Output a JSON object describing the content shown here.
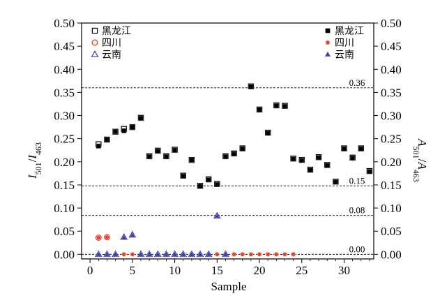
{
  "chart_data": {
    "type": "scatter",
    "title": "",
    "xlabel": "Sample",
    "ylabel_left": {
      "base": "I",
      "sub1": "501",
      "slash": "/",
      "base2": "I",
      "sub2": "463"
    },
    "ylabel_right": {
      "base": "A",
      "sub1": "501",
      "slash": "/",
      "base2": "A",
      "sub2": "463"
    },
    "xlim": [
      -1,
      33.5
    ],
    "ylim": [
      -0.01,
      0.5
    ],
    "x_ticks": [
      0,
      5,
      10,
      15,
      20,
      25,
      30
    ],
    "x_tick_labels": [
      "0",
      "5",
      "10",
      "15",
      "20",
      "25",
      "30"
    ],
    "y_ticks": [
      0.0,
      0.05,
      0.1,
      0.15,
      0.2,
      0.25,
      0.3,
      0.35,
      0.4,
      0.45,
      0.5
    ],
    "y_tick_labels": [
      "0.00",
      "0.05",
      "0.10",
      "0.15",
      "0.20",
      "0.25",
      "0.30",
      "0.35",
      "0.40",
      "0.45",
      "0.50"
    ],
    "reference_lines": [
      {
        "y": 0.36,
        "label": "0.36"
      },
      {
        "y": 0.148,
        "label": "0.15"
      },
      {
        "y": 0.084,
        "label": "0.08"
      },
      {
        "y": 0.0,
        "label": "0.00"
      }
    ],
    "legend_left": {
      "placement": "top-left",
      "entries": [
        {
          "label": "黑龙江",
          "marker": "square-open",
          "color": "#000000"
        },
        {
          "label": "四川",
          "marker": "circle-open",
          "color": "#e8402a"
        },
        {
          "label": "云南",
          "marker": "triangle-open",
          "color": "#3a3fa0"
        }
      ]
    },
    "legend_right": {
      "placement": "top-right",
      "entries": [
        {
          "label": "黑龙江",
          "marker": "square-filled",
          "color": "#000000"
        },
        {
          "label": "四川",
          "marker": "circle-filled",
          "color": "#e8402a"
        },
        {
          "label": "云南",
          "marker": "triangle-filled",
          "color": "#3a3fa0"
        }
      ]
    },
    "series": [
      {
        "name": "黑龙江",
        "axis": "left",
        "marker": "square-open",
        "color": "#000000",
        "points": [
          [
            1,
            0.238
          ],
          [
            2,
            0.248
          ],
          [
            3,
            0.265
          ],
          [
            4,
            0.271
          ],
          [
            5,
            0.275
          ],
          [
            6,
            0.295
          ],
          [
            7,
            0.212
          ],
          [
            8,
            0.224
          ],
          [
            9,
            0.212
          ],
          [
            10,
            0.226
          ],
          [
            11,
            0.17
          ],
          [
            12,
            0.204
          ],
          [
            13,
            0.148
          ],
          [
            14,
            0.162
          ],
          [
            15,
            0.152
          ],
          [
            16,
            0.212
          ],
          [
            17,
            0.218
          ],
          [
            18,
            0.229
          ],
          [
            19,
            0.363
          ],
          [
            20,
            0.313
          ],
          [
            21,
            0.263
          ],
          [
            22,
            0.322
          ],
          [
            23,
            0.321
          ],
          [
            24,
            0.207
          ],
          [
            25,
            0.204
          ],
          [
            26,
            0.183
          ],
          [
            27,
            0.21
          ],
          [
            28,
            0.193
          ],
          [
            29,
            0.157
          ],
          [
            30,
            0.229
          ],
          [
            31,
            0.209
          ],
          [
            32,
            0.229
          ],
          [
            33,
            0.18
          ]
        ]
      },
      {
        "name": "黑龙江",
        "axis": "right",
        "marker": "square-filled",
        "color": "#000000",
        "points": [
          [
            1,
            0.234
          ],
          [
            2,
            0.248
          ],
          [
            3,
            0.265
          ],
          [
            4,
            0.267
          ],
          [
            5,
            0.275
          ],
          [
            6,
            0.294
          ],
          [
            7,
            0.211
          ],
          [
            8,
            0.223
          ],
          [
            9,
            0.211
          ],
          [
            10,
            0.225
          ],
          [
            11,
            0.169
          ],
          [
            12,
            0.204
          ],
          [
            13,
            0.147
          ],
          [
            14,
            0.161
          ],
          [
            15,
            0.151
          ],
          [
            16,
            0.211
          ],
          [
            17,
            0.217
          ],
          [
            18,
            0.228
          ],
          [
            19,
            0.362
          ],
          [
            20,
            0.312
          ],
          [
            21,
            0.262
          ],
          [
            22,
            0.321
          ],
          [
            23,
            0.32
          ],
          [
            24,
            0.206
          ],
          [
            25,
            0.203
          ],
          [
            26,
            0.182
          ],
          [
            27,
            0.209
          ],
          [
            28,
            0.192
          ],
          [
            29,
            0.156
          ],
          [
            30,
            0.228
          ],
          [
            31,
            0.208
          ],
          [
            32,
            0.228
          ],
          [
            33,
            0.179
          ]
        ]
      },
      {
        "name": "四川",
        "axis": "left",
        "marker": "circle-open",
        "color": "#e8402a",
        "points": [
          [
            1,
            0.036
          ],
          [
            2,
            0.037
          ]
        ]
      },
      {
        "name": "四川",
        "axis": "right",
        "marker": "circle-filled",
        "color": "#e8402a",
        "points": [
          [
            1,
            0.036
          ],
          [
            2,
            0.037
          ],
          [
            4,
            0.0
          ],
          [
            5,
            0.0
          ],
          [
            6,
            0.0
          ],
          [
            7,
            0.0
          ],
          [
            8,
            0.0
          ],
          [
            9,
            0.0
          ],
          [
            10,
            0.0
          ],
          [
            11,
            0.0
          ],
          [
            12,
            0.0
          ],
          [
            13,
            0.0
          ],
          [
            14,
            0.0
          ],
          [
            15,
            0.0
          ],
          [
            16,
            0.0
          ],
          [
            17,
            0.0
          ],
          [
            18,
            0.0
          ],
          [
            19,
            0.0
          ],
          [
            20,
            0.0
          ],
          [
            21,
            0.0
          ],
          [
            22,
            0.0
          ],
          [
            23,
            0.0
          ],
          [
            24,
            0.0
          ]
        ]
      },
      {
        "name": "云南",
        "axis": "left",
        "marker": "triangle-open",
        "color": "#3a3fa0",
        "points": [
          [
            1,
            0.0
          ],
          [
            2,
            0.0
          ],
          [
            3,
            0.0
          ],
          [
            4,
            0.037
          ],
          [
            5,
            0.042
          ],
          [
            6,
            0.0
          ],
          [
            7,
            0.0
          ],
          [
            8,
            0.0
          ],
          [
            9,
            0.0
          ],
          [
            10,
            0.0
          ],
          [
            11,
            0.0
          ],
          [
            12,
            0.0
          ],
          [
            13,
            0.0
          ],
          [
            14,
            0.0
          ],
          [
            15,
            0.083
          ],
          [
            16,
            0.0
          ]
        ]
      },
      {
        "name": "云南",
        "axis": "right",
        "marker": "triangle-filled",
        "color": "#3a3fa0",
        "points": [
          [
            1,
            0.0
          ],
          [
            2,
            0.0
          ],
          [
            3,
            0.0
          ],
          [
            4,
            0.036
          ],
          [
            5,
            0.041
          ],
          [
            6,
            0.0
          ],
          [
            7,
            0.0
          ],
          [
            8,
            0.0
          ],
          [
            9,
            0.0
          ],
          [
            10,
            0.0
          ],
          [
            11,
            0.0
          ],
          [
            12,
            0.0
          ],
          [
            13,
            0.0
          ],
          [
            14,
            0.0
          ],
          [
            15,
            0.082
          ],
          [
            16,
            0.0
          ]
        ]
      }
    ]
  }
}
